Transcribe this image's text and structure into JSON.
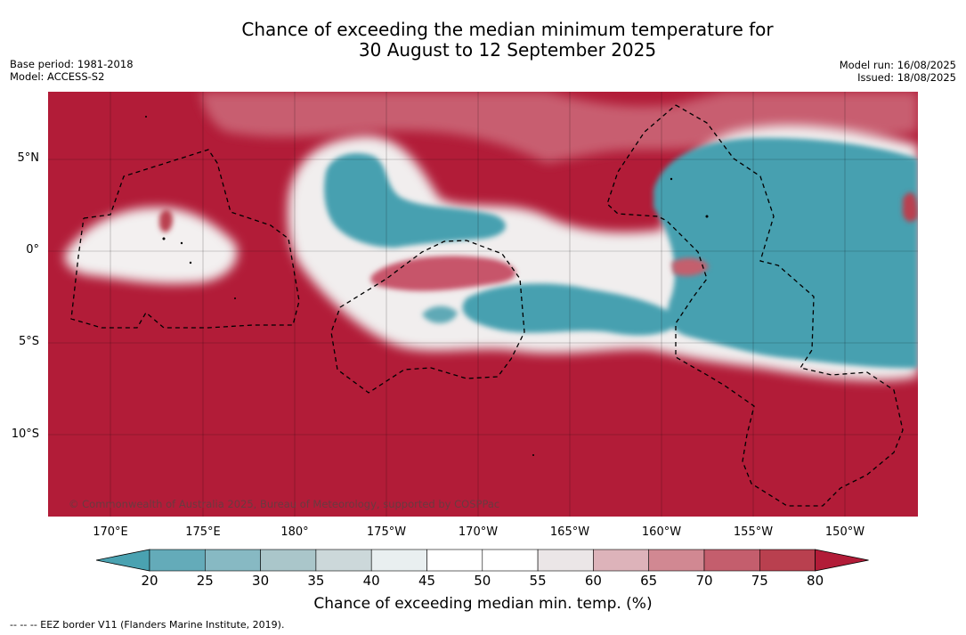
{
  "title": {
    "line1": "Chance of exceeding the median minimum temperature for",
    "line2": "30 August to 12 September 2025"
  },
  "meta_left": {
    "base_period": "Base period: 1981-2018",
    "model": "Model: ACCESS-S2"
  },
  "meta_right": {
    "model_run": "Model run: 16/08/2025",
    "issued": "Issued: 18/08/2025"
  },
  "map": {
    "lat_labels": [
      "5°N",
      "0°",
      "5°S",
      "10°S"
    ],
    "lon_labels": [
      "170°E",
      "175°E",
      "180°",
      "175°W",
      "170°W",
      "165°W",
      "160°W",
      "155°W",
      "150°W"
    ],
    "copyright": "© Commonwealth of Australia 2025, Bureau of Meteorology, supported by COSPPac",
    "colors": {
      "high": "#b21c38",
      "low": "#47a0b0",
      "neutral": "#ffffff"
    }
  },
  "colorbar": {
    "ticks": [
      "20",
      "25",
      "30",
      "35",
      "40",
      "45",
      "50",
      "55",
      "60",
      "65",
      "70",
      "75",
      "80"
    ],
    "colors": [
      "#4aa2b1",
      "#64abb9",
      "#87b9c3",
      "#aac6ca",
      "#ccd8da",
      "#e9eff0",
      "#ffffff",
      "#ffffff",
      "#ebe6e7",
      "#ddb3ba",
      "#d18892",
      "#c45e6d",
      "#b9404f",
      "#b21c38"
    ],
    "label": "Chance of exceeding median min. temp. (%)"
  },
  "legend_footer": "--  --  -- EEZ border V11 (Flanders Marine Institute, 2019)."
}
